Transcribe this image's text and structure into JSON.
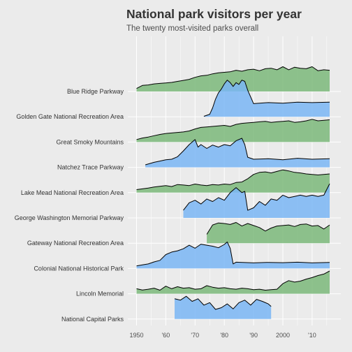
{
  "chart_data": {
    "type": "area",
    "title": "National park visitors per year",
    "subtitle": "The twenty most-visited parks overall",
    "xlabel": "",
    "ylabel": "",
    "xlim": [
      1948,
      2018
    ],
    "x_ticks": [
      1950,
      1960,
      1970,
      1980,
      1990,
      2000,
      2010
    ],
    "x_tick_labels": [
      "1950",
      "'60",
      "'70",
      "'80",
      "'90",
      "2000",
      "'10"
    ],
    "grid": true,
    "legend": "none",
    "colors": {
      "green": "#7bb87a",
      "blue": "#7ab6f5",
      "overlap": "#4a9fbf",
      "background": "#ebebeb",
      "grid": "#ffffff"
    },
    "series": [
      {
        "name": "Blue Ridge Parkway",
        "color": "green",
        "x": [
          1950,
          1952,
          1954,
          1956,
          1958,
          1960,
          1962,
          1964,
          1966,
          1968,
          1970,
          1972,
          1974,
          1976,
          1978,
          1980,
          1982,
          1984,
          1986,
          1988,
          1990,
          1992,
          1994,
          1996,
          1998,
          2000,
          2002,
          2004,
          2006,
          2008,
          2010,
          2012,
          2014,
          2016
        ],
        "y": [
          0.12,
          0.24,
          0.26,
          0.3,
          0.32,
          0.34,
          0.36,
          0.4,
          0.44,
          0.48,
          0.56,
          0.62,
          0.64,
          0.7,
          0.74,
          0.76,
          0.78,
          0.84,
          0.8,
          0.86,
          0.88,
          0.82,
          0.9,
          0.92,
          0.86,
          0.98,
          0.86,
          0.96,
          0.92,
          0.9,
          0.98,
          0.82,
          0.86,
          0.84
        ]
      },
      {
        "name": "Golden Gate National Recreation Area",
        "color": "blue",
        "x": [
          1973,
          1975,
          1976,
          1977,
          1978,
          1979,
          1980,
          1981,
          1982,
          1983,
          1984,
          1985,
          1986,
          1987,
          1988,
          1990,
          1995,
          2000,
          2005,
          2010,
          2016
        ],
        "y": [
          0.02,
          0.1,
          0.35,
          0.7,
          0.95,
          1.1,
          1.3,
          1.45,
          1.35,
          1.2,
          1.35,
          1.28,
          1.45,
          1.4,
          1.05,
          0.52,
          0.56,
          0.54,
          0.58,
          0.56,
          0.58
        ]
      },
      {
        "name": "Great Smoky Mountains",
        "color": "green",
        "x": [
          1950,
          1952,
          1954,
          1956,
          1958,
          1960,
          1962,
          1964,
          1966,
          1968,
          1970,
          1972,
          1974,
          1976,
          1978,
          1980,
          1982,
          1984,
          1986,
          1988,
          1990,
          1992,
          1994,
          1996,
          1998,
          2000,
          2002,
          2004,
          2006,
          2008,
          2010,
          2012,
          2014,
          2016
        ],
        "y": [
          0.1,
          0.16,
          0.2,
          0.25,
          0.3,
          0.34,
          0.36,
          0.38,
          0.4,
          0.44,
          0.52,
          0.58,
          0.6,
          0.62,
          0.64,
          0.66,
          0.62,
          0.7,
          0.74,
          0.76,
          0.78,
          0.8,
          0.82,
          0.78,
          0.8,
          0.82,
          0.84,
          0.78,
          0.8,
          0.84,
          0.9,
          0.84,
          0.86,
          0.88
        ]
      },
      {
        "name": "Natchez Trace Parkway",
        "color": "blue",
        "x": [
          1953,
          1956,
          1958,
          1960,
          1962,
          1964,
          1966,
          1968,
          1970,
          1971,
          1972,
          1974,
          1976,
          1978,
          1980,
          1982,
          1984,
          1986,
          1987,
          1988,
          1990,
          1995,
          2000,
          2005,
          2010,
          2016
        ],
        "y": [
          0.1,
          0.2,
          0.25,
          0.3,
          0.32,
          0.42,
          0.65,
          0.9,
          1.1,
          0.8,
          0.9,
          0.75,
          0.88,
          0.8,
          0.9,
          0.85,
          1.05,
          1.15,
          0.9,
          0.4,
          0.32,
          0.34,
          0.3,
          0.36,
          0.32,
          0.34
        ]
      },
      {
        "name": "Lake Mead National Recreation Area",
        "color": "green",
        "x": [
          1950,
          1952,
          1954,
          1956,
          1958,
          1960,
          1962,
          1964,
          1966,
          1968,
          1970,
          1972,
          1974,
          1976,
          1978,
          1980,
          1982,
          1984,
          1986,
          1988,
          1990,
          1992,
          1994,
          1996,
          1998,
          2000,
          2002,
          2004,
          2006,
          2008,
          2010,
          2012,
          2014,
          2016
        ],
        "y": [
          0.12,
          0.15,
          0.18,
          0.22,
          0.25,
          0.28,
          0.24,
          0.32,
          0.3,
          0.28,
          0.34,
          0.3,
          0.28,
          0.32,
          0.3,
          0.34,
          0.32,
          0.4,
          0.42,
          0.55,
          0.72,
          0.8,
          0.82,
          0.78,
          0.84,
          0.9,
          0.86,
          0.8,
          0.78,
          0.74,
          0.72,
          0.7,
          0.72,
          0.74
        ]
      },
      {
        "name": "George Washington Memorial Parkway",
        "color": "blue",
        "x": [
          1966,
          1968,
          1970,
          1972,
          1974,
          1976,
          1978,
          1980,
          1982,
          1984,
          1986,
          1987,
          1988,
          1990,
          1992,
          1994,
          1996,
          1998,
          2000,
          2002,
          2004,
          2006,
          2008,
          2010,
          2012,
          2014,
          2016
        ],
        "y": [
          0.3,
          0.6,
          0.7,
          0.55,
          0.75,
          0.65,
          0.8,
          0.7,
          1.0,
          1.2,
          1.0,
          1.05,
          0.3,
          0.4,
          0.65,
          0.5,
          0.75,
          0.7,
          0.9,
          0.8,
          0.85,
          0.9,
          0.85,
          0.9,
          0.85,
          0.9,
          1.35
        ]
      },
      {
        "name": "Gateway National Recreation Area",
        "color": "green",
        "x": [
          1974,
          1976,
          1978,
          1980,
          1982,
          1984,
          1986,
          1988,
          1990,
          1992,
          1994,
          1996,
          1998,
          2000,
          2002,
          2004,
          2006,
          2008,
          2010,
          2012,
          2014,
          2016
        ],
        "y": [
          0.35,
          0.72,
          0.8,
          0.78,
          0.74,
          0.82,
          0.68,
          0.78,
          0.7,
          0.62,
          0.48,
          0.6,
          0.68,
          0.7,
          0.72,
          0.66,
          0.74,
          0.76,
          0.68,
          0.7,
          0.56,
          0.72
        ]
      },
      {
        "name": "Colonial National Historical Park",
        "color": "blue",
        "x": [
          1950,
          1952,
          1954,
          1956,
          1958,
          1960,
          1962,
          1964,
          1966,
          1968,
          1970,
          1972,
          1974,
          1976,
          1978,
          1980,
          1981,
          1982,
          1983,
          1984,
          1990,
          1995,
          2000,
          2005,
          2010,
          2016
        ],
        "y": [
          0.1,
          0.14,
          0.18,
          0.26,
          0.32,
          0.55,
          0.65,
          0.7,
          0.78,
          0.92,
          0.8,
          0.96,
          0.92,
          0.88,
          0.82,
          0.95,
          1.05,
          0.8,
          0.18,
          0.25,
          0.22,
          0.24,
          0.23,
          0.25,
          0.22,
          0.24
        ]
      },
      {
        "name": "Lincoln Memorial",
        "color": "green",
        "x": [
          1950,
          1952,
          1954,
          1956,
          1958,
          1960,
          1962,
          1964,
          1966,
          1968,
          1970,
          1972,
          1974,
          1976,
          1978,
          1980,
          1982,
          1984,
          1986,
          1988,
          1990,
          1992,
          1994,
          1996,
          1998,
          2000,
          2002,
          2004,
          2006,
          2008,
          2010,
          2012,
          2014,
          2016
        ],
        "y": [
          0.2,
          0.15,
          0.18,
          0.22,
          0.14,
          0.3,
          0.2,
          0.28,
          0.22,
          0.24,
          0.18,
          0.2,
          0.32,
          0.26,
          0.22,
          0.24,
          0.2,
          0.18,
          0.22,
          0.2,
          0.16,
          0.18,
          0.14,
          0.16,
          0.18,
          0.4,
          0.52,
          0.46,
          0.5,
          0.58,
          0.64,
          0.72,
          0.78,
          0.9
        ]
      },
      {
        "name": "National Capital Parks",
        "color": "blue",
        "x": [
          1963,
          1965,
          1967,
          1969,
          1971,
          1973,
          1975,
          1977,
          1979,
          1981,
          1983,
          1985,
          1987,
          1989,
          1991,
          1993,
          1995,
          1996
        ],
        "y": [
          0.8,
          0.75,
          0.9,
          0.7,
          0.8,
          0.55,
          0.65,
          0.38,
          0.45,
          0.6,
          0.4,
          0.65,
          0.75,
          0.55,
          0.78,
          0.7,
          0.6,
          0.5
        ]
      }
    ]
  }
}
